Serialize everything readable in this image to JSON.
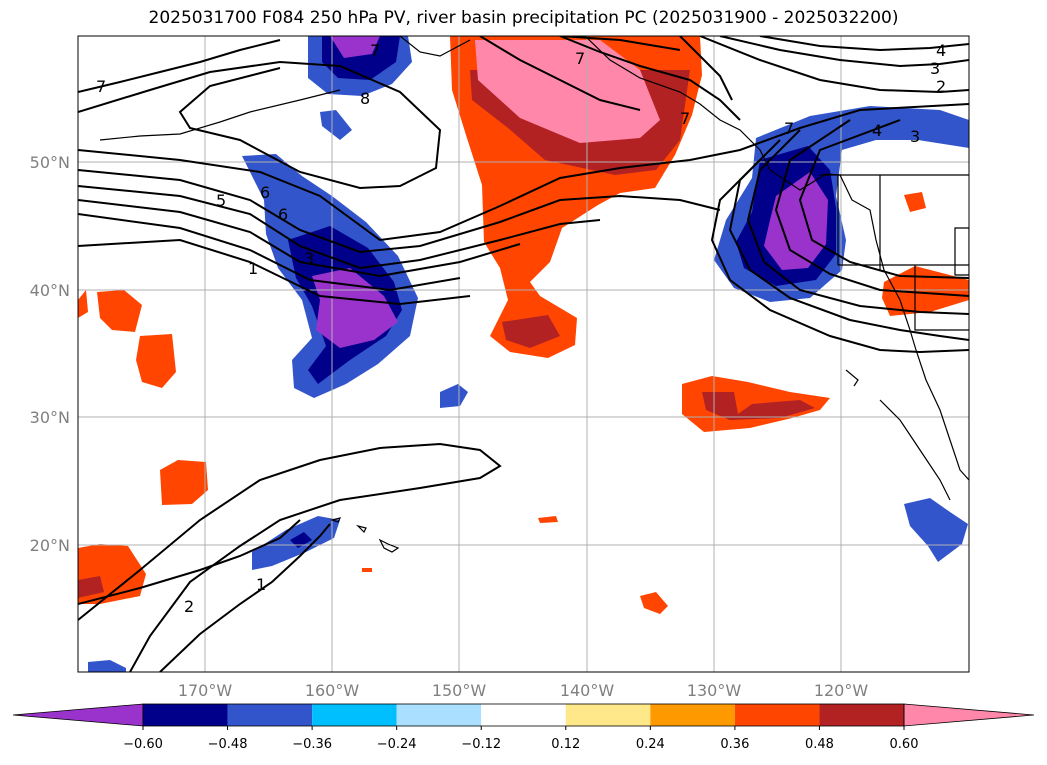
{
  "title": "2025031700 F084 250 hPa PV, river basin precipitation PC (2025031900 - 2025032200)",
  "lat_labels": [
    "50°N",
    "40°N",
    "30°N",
    "20°N"
  ],
  "lon_labels": [
    "170°W",
    "160°W",
    "150°W",
    "140°W",
    "130°W",
    "120°W"
  ],
  "contour_labels": [
    "7",
    "8",
    "6",
    "7",
    "5",
    "7",
    "6",
    "1",
    "3",
    "7",
    "4",
    "3",
    "2",
    "4",
    "3",
    "7",
    "2",
    "1"
  ],
  "colorbar": {
    "ticks": [
      "−0.60",
      "−0.48",
      "−0.36",
      "−0.24",
      "−0.12",
      "0.12",
      "0.24",
      "0.36",
      "0.48",
      "0.60"
    ],
    "colors": [
      "#9933cc",
      "#00008b",
      "#3355cc",
      "#00bfff",
      "#aadfff",
      "#ffffff",
      "#ffe88a",
      "#ff9900",
      "#ff4500",
      "#b22222",
      "#ff88aa"
    ]
  },
  "colors": {
    "neg_strong": "#9933cc",
    "neg_dark": "#00008b",
    "neg_mid": "#3355cc",
    "neg_light": "#00bfff",
    "pos_light": "#ffe88a",
    "pos_mid": "#ff4500",
    "pos_dark": "#b22222",
    "pos_strong": "#ff88aa"
  }
}
